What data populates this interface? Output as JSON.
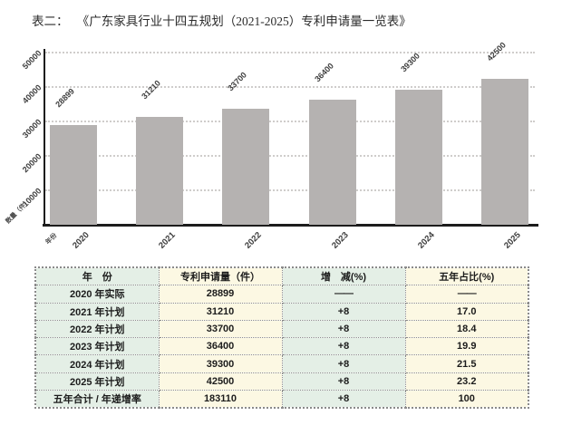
{
  "title": {
    "prefix": "表二：",
    "main": "《广东家具行业十四五规划（2021-2025）专利申请量一览表》"
  },
  "chart_data": {
    "type": "bar",
    "categories": [
      "2020",
      "2021",
      "2022",
      "2023",
      "2024",
      "2025"
    ],
    "values": [
      28899,
      31210,
      33700,
      36400,
      39300,
      42500
    ],
    "value_labels": [
      "28899",
      "31210",
      "33700",
      "36400",
      "39300",
      "42500"
    ],
    "x_axis_label": "年份",
    "y_axis_label": "数量（件）",
    "ylim": [
      0,
      50000
    ],
    "yticks": [
      10000,
      20000,
      30000,
      40000,
      50000
    ],
    "ytick_labels": [
      "10000",
      "20000",
      "30000",
      "40000",
      "50000"
    ],
    "grid": "horizontal-dotted",
    "legend": "none",
    "bar_color": "#b5b2b1",
    "axis_color": "#1c1c1c",
    "gridline_color": "#cfcdcb"
  },
  "table": {
    "headers": [
      "年　份",
      "专利申请量（件）",
      "增　减(%)",
      "五年占比(%)"
    ],
    "rows": [
      [
        "2020 年实际",
        "28899",
        "——",
        "——"
      ],
      [
        "2021 年计划",
        "31210",
        "+8",
        "17.0"
      ],
      [
        "2022 年计划",
        "33700",
        "+8",
        "18.4"
      ],
      [
        "2023 年计划",
        "36400",
        "+8",
        "19.9"
      ],
      [
        "2024 年计划",
        "39300",
        "+8",
        "21.5"
      ],
      [
        "2025 年计划",
        "42500",
        "+8",
        "23.2"
      ],
      [
        "五年合计 / 年递增率",
        "183110",
        "+8",
        "100"
      ]
    ],
    "colors": {
      "green_cell": "#e4efe6",
      "cream_cell": "#fcf8e3"
    }
  }
}
